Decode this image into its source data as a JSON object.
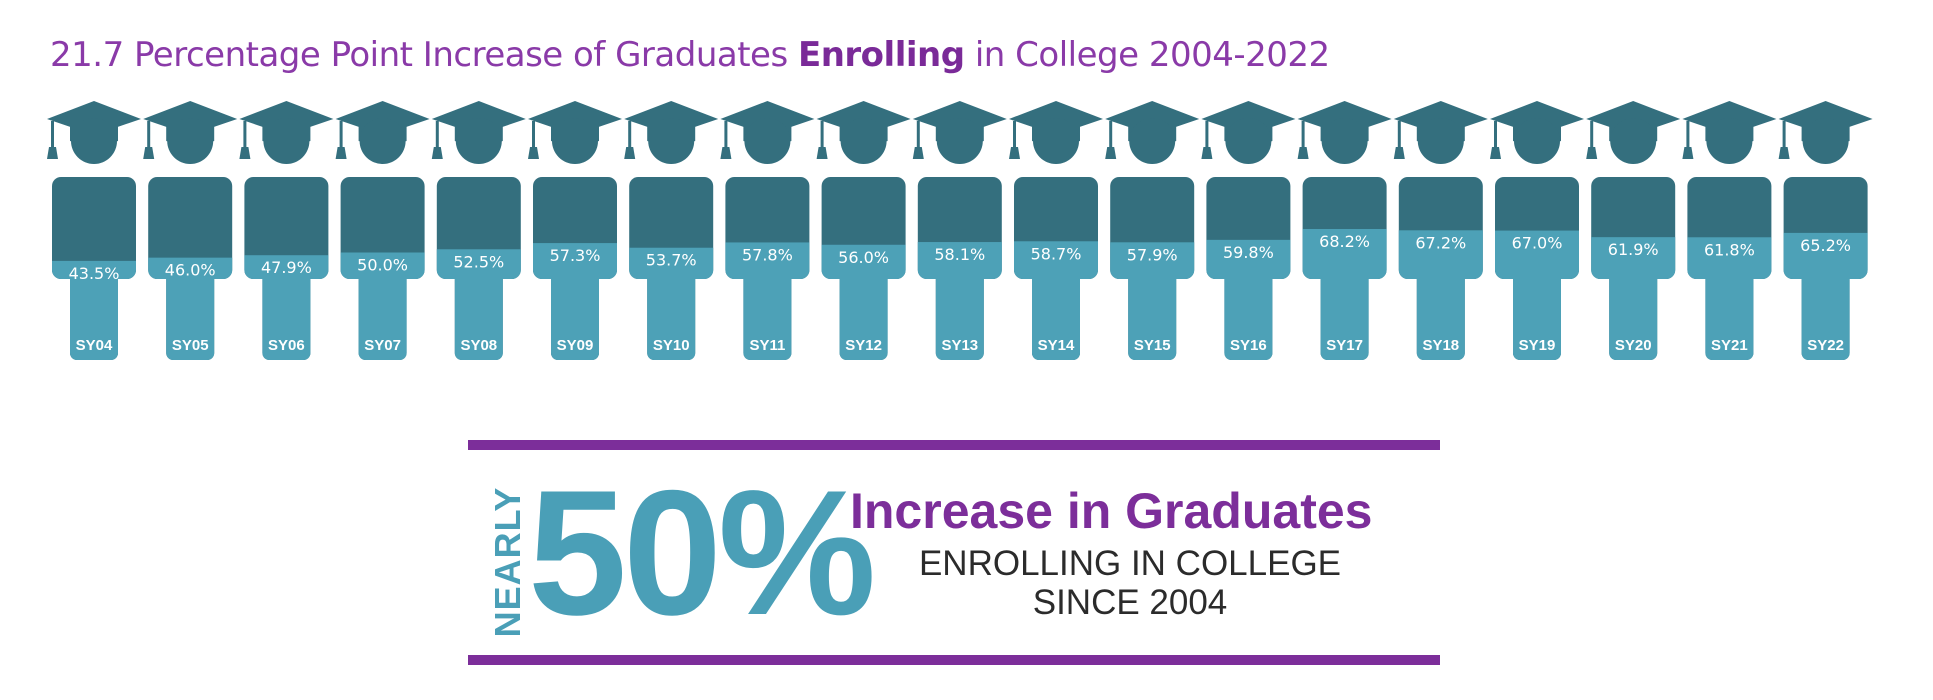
{
  "title": {
    "prefix": "21.7 Percentage Point Increase of Graduates ",
    "emphasis": "Enrolling",
    "suffix": " in College 2004-2022"
  },
  "colors": {
    "dark_teal": "#346f7e",
    "light_teal": "#4da1b7",
    "purple": "#7c2e9a",
    "title_purple": "#8a3aa8"
  },
  "chart_data": {
    "type": "bar",
    "title": "21.7 Percentage Point Increase of Graduates Enrolling in College 2004-2022",
    "categories": [
      "SY04",
      "SY05",
      "SY06",
      "SY07",
      "SY08",
      "SY09",
      "SY10",
      "SY11",
      "SY12",
      "SY13",
      "SY14",
      "SY15",
      "SY16",
      "SY17",
      "SY18",
      "SY19",
      "SY20",
      "SY21",
      "SY22"
    ],
    "values": [
      43.5,
      46.0,
      47.9,
      50.0,
      52.5,
      57.3,
      53.7,
      57.8,
      56.0,
      58.1,
      58.7,
      57.9,
      59.8,
      68.2,
      67.2,
      67.0,
      61.9,
      61.8,
      65.2
    ],
    "labels": [
      "43.5%",
      "46.0%",
      "47.9%",
      "50.0%",
      "52.5%",
      "57.3%",
      "53.7%",
      "57.8%",
      "56.0%",
      "58.1%",
      "58.7%",
      "57.9%",
      "59.8%",
      "68.2%",
      "67.2%",
      "67.0%",
      "61.9%",
      "61.8%",
      "65.2%"
    ],
    "unit": "%",
    "ylim": [
      0,
      100
    ],
    "icon": "graduate-figure-icon",
    "fill_meaning": "light teal portion of each graduate's torso represents the enrollment percentage"
  },
  "callout": {
    "nearly": "NEARLY",
    "big_number": "50%",
    "headline": "Increase in Graduates",
    "line1": "ENROLLING IN COLLEGE",
    "line2": "SINCE 2004"
  }
}
